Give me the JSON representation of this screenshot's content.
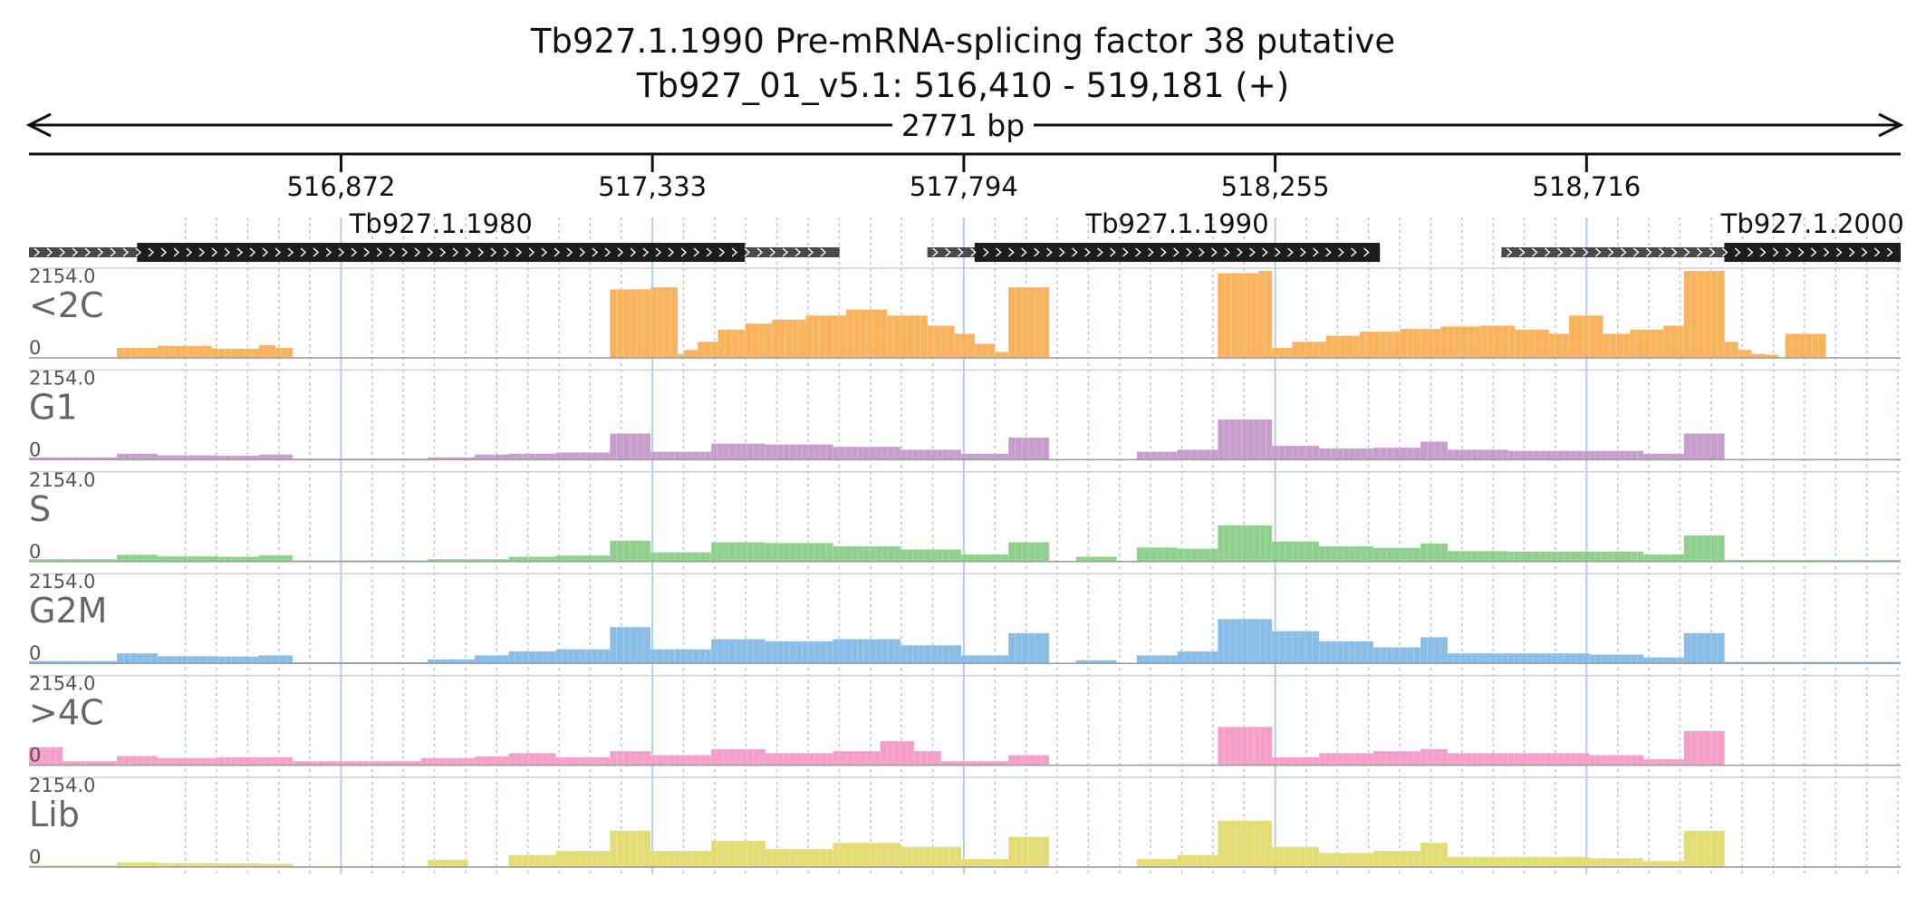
{
  "header": {
    "title_line1": "Tb927.1.1990  Pre-mRNA-splicing factor 38  putative",
    "title_line2": "Tb927_01_v5.1: 516,410 - 519,181 (+)",
    "span_label": "2771 bp"
  },
  "colors": {
    "lt2c": "#f9b35d",
    "g1": "#c79ecb",
    "s": "#8fd08d",
    "g2m": "#88bde8",
    "gt4c": "#f59ec8",
    "lib": "#e3dc72",
    "gene_body": "#1d1d1d",
    "gene_utr": "#4a4a4a",
    "grid": "#8fb9e6"
  },
  "chart_data": {
    "type": "bar",
    "title": "Tb927.1.1990  Pre-mRNA-splicing factor 38  putative",
    "subtitle": "Tb927_01_v5.1: 516,410 - 519,181 (+)",
    "xlabel": "",
    "ylabel": "",
    "xlim": [
      516410,
      519181
    ],
    "ylim": [
      0,
      2154.0
    ],
    "y_max_label": "2154.0",
    "y_min_label": "0",
    "x_ticks": [
      516872,
      517333,
      517794,
      518255,
      518716
    ],
    "x_tick_labels": [
      "516,872",
      "517,333",
      "517,794",
      "518,255",
      "518,716"
    ],
    "grid": true,
    "legend": "none",
    "genes": [
      {
        "name": "Tb927.1.1980",
        "start": 516410,
        "end": 517610,
        "cds_start": 516570,
        "cds_end": 517470
      },
      {
        "name": "Tb927.1.1990",
        "start": 517740,
        "end": 518410,
        "cds_start": 517810,
        "cds_end": 518410
      },
      {
        "name": "Tb927.1.2000",
        "start": 518590,
        "end": 519181,
        "cds_start": 518920,
        "cds_end": 519181
      }
    ],
    "bins": {
      "start": 516410,
      "step": 20,
      "count": 139
    },
    "series": [
      {
        "name": "<2C",
        "color": "#f9b35d",
        "segments": [
          [
            516540,
            516600,
            250
          ],
          [
            516600,
            516680,
            300
          ],
          [
            516680,
            516690,
            240
          ],
          [
            516690,
            516750,
            230
          ],
          [
            516750,
            516775,
            320
          ],
          [
            516775,
            516800,
            250
          ],
          [
            516800,
            516740,
            0
          ],
          [
            517270,
            517330,
            1700
          ],
          [
            517330,
            517370,
            1750
          ],
          [
            517370,
            517380,
            100
          ],
          [
            517380,
            517400,
            200
          ],
          [
            517400,
            517430,
            400
          ],
          [
            517430,
            517470,
            700
          ],
          [
            517470,
            517510,
            850
          ],
          [
            517510,
            517560,
            950
          ],
          [
            517560,
            517620,
            1050
          ],
          [
            517620,
            517680,
            1200
          ],
          [
            517680,
            517740,
            1050
          ],
          [
            517740,
            517780,
            800
          ],
          [
            517780,
            517810,
            600
          ],
          [
            517810,
            517840,
            350
          ],
          [
            517840,
            517860,
            150
          ],
          [
            517860,
            517920,
            1750
          ],
          [
            518170,
            518230,
            2100
          ],
          [
            518230,
            518250,
            2154
          ],
          [
            518250,
            518280,
            250
          ],
          [
            518280,
            518330,
            400
          ],
          [
            518330,
            518380,
            550
          ],
          [
            518380,
            518440,
            650
          ],
          [
            518440,
            518500,
            720
          ],
          [
            518500,
            518560,
            780
          ],
          [
            518560,
            518610,
            800
          ],
          [
            518610,
            518660,
            700
          ],
          [
            518660,
            518690,
            600
          ],
          [
            518690,
            518740,
            1050
          ],
          [
            518740,
            518780,
            600
          ],
          [
            518780,
            518830,
            700
          ],
          [
            518830,
            518860,
            800
          ],
          [
            518860,
            518920,
            2154
          ],
          [
            518920,
            518940,
            400
          ],
          [
            518940,
            518960,
            200
          ],
          [
            518960,
            518980,
            100
          ],
          [
            518980,
            519000,
            80
          ],
          [
            519010,
            519070,
            600
          ]
        ]
      },
      {
        "name": "G1",
        "color": "#c79ecb",
        "segments": [
          [
            516410,
            516540,
            60
          ],
          [
            516540,
            516600,
            150
          ],
          [
            516600,
            516690,
            110
          ],
          [
            516690,
            516750,
            100
          ],
          [
            516750,
            516800,
            130
          ],
          [
            516800,
            517000,
            30
          ],
          [
            517000,
            517070,
            60
          ],
          [
            517070,
            517120,
            130
          ],
          [
            517120,
            517190,
            150
          ],
          [
            517190,
            517270,
            180
          ],
          [
            517270,
            517330,
            650
          ],
          [
            517330,
            517420,
            200
          ],
          [
            517420,
            517500,
            400
          ],
          [
            517500,
            517600,
            380
          ],
          [
            517600,
            517700,
            320
          ],
          [
            517700,
            517790,
            250
          ],
          [
            517790,
            517860,
            150
          ],
          [
            517860,
            517920,
            550
          ],
          [
            518050,
            518110,
            200
          ],
          [
            518110,
            518170,
            250
          ],
          [
            518170,
            518250,
            1000
          ],
          [
            518250,
            518320,
            350
          ],
          [
            518320,
            518400,
            280
          ],
          [
            518400,
            518470,
            300
          ],
          [
            518470,
            518510,
            450
          ],
          [
            518510,
            518600,
            250
          ],
          [
            518600,
            518720,
            220
          ],
          [
            518720,
            518800,
            220
          ],
          [
            518800,
            518860,
            150
          ],
          [
            518860,
            518920,
            650
          ]
        ]
      },
      {
        "name": "S",
        "color": "#8fd08d",
        "segments": [
          [
            516410,
            516540,
            60
          ],
          [
            516540,
            516600,
            170
          ],
          [
            516600,
            516690,
            130
          ],
          [
            516690,
            516750,
            120
          ],
          [
            516750,
            516800,
            160
          ],
          [
            516800,
            517000,
            30
          ],
          [
            517000,
            517120,
            60
          ],
          [
            517120,
            517190,
            120
          ],
          [
            517190,
            517270,
            150
          ],
          [
            517270,
            517330,
            520
          ],
          [
            517330,
            517420,
            230
          ],
          [
            517420,
            517500,
            480
          ],
          [
            517500,
            517600,
            460
          ],
          [
            517600,
            517700,
            380
          ],
          [
            517700,
            517790,
            300
          ],
          [
            517790,
            517860,
            180
          ],
          [
            517860,
            517920,
            480
          ],
          [
            517960,
            518020,
            120
          ],
          [
            518050,
            518110,
            350
          ],
          [
            518110,
            518170,
            320
          ],
          [
            518170,
            518250,
            900
          ],
          [
            518250,
            518320,
            500
          ],
          [
            518320,
            518400,
            380
          ],
          [
            518400,
            518470,
            340
          ],
          [
            518470,
            518510,
            450
          ],
          [
            518510,
            518600,
            260
          ],
          [
            518600,
            518720,
            250
          ],
          [
            518720,
            518800,
            250
          ],
          [
            518800,
            518860,
            180
          ],
          [
            518860,
            518920,
            650
          ],
          [
            518920,
            519181,
            40
          ]
        ]
      },
      {
        "name": "G2M",
        "color": "#88bde8",
        "segments": [
          [
            516410,
            516540,
            60
          ],
          [
            516540,
            516600,
            250
          ],
          [
            516600,
            516690,
            180
          ],
          [
            516690,
            516750,
            170
          ],
          [
            516750,
            516800,
            200
          ],
          [
            516800,
            517000,
            30
          ],
          [
            517000,
            517070,
            100
          ],
          [
            517070,
            517120,
            200
          ],
          [
            517120,
            517190,
            300
          ],
          [
            517190,
            517270,
            350
          ],
          [
            517270,
            517330,
            900
          ],
          [
            517330,
            517420,
            350
          ],
          [
            517420,
            517500,
            600
          ],
          [
            517500,
            517600,
            550
          ],
          [
            517600,
            517700,
            600
          ],
          [
            517700,
            517790,
            450
          ],
          [
            517790,
            517860,
            200
          ],
          [
            517860,
            517920,
            750
          ],
          [
            517960,
            518020,
            80
          ],
          [
            518050,
            518110,
            200
          ],
          [
            518110,
            518170,
            300
          ],
          [
            518170,
            518250,
            1100
          ],
          [
            518250,
            518320,
            800
          ],
          [
            518320,
            518400,
            550
          ],
          [
            518400,
            518470,
            400
          ],
          [
            518470,
            518510,
            650
          ],
          [
            518510,
            518600,
            250
          ],
          [
            518600,
            518720,
            250
          ],
          [
            518720,
            518800,
            220
          ],
          [
            518800,
            518860,
            150
          ],
          [
            518860,
            518920,
            750
          ],
          [
            518920,
            519181,
            40
          ]
        ]
      },
      {
        "name": ">4C",
        "color": "#f59ec8",
        "segments": [
          [
            516410,
            516460,
            450
          ],
          [
            516460,
            516540,
            100
          ],
          [
            516540,
            516600,
            230
          ],
          [
            516600,
            516690,
            180
          ],
          [
            516690,
            516750,
            200
          ],
          [
            516750,
            516800,
            200
          ],
          [
            516800,
            516990,
            100
          ],
          [
            516990,
            517070,
            180
          ],
          [
            517070,
            517120,
            220
          ],
          [
            517120,
            517190,
            300
          ],
          [
            517190,
            517270,
            200
          ],
          [
            517120,
            517160,
            0
          ],
          [
            517270,
            517330,
            350
          ],
          [
            517330,
            517420,
            250
          ],
          [
            517420,
            517500,
            400
          ],
          [
            517500,
            517600,
            300
          ],
          [
            517600,
            517670,
            350
          ],
          [
            517670,
            517720,
            600
          ],
          [
            517720,
            517760,
            350
          ],
          [
            517760,
            517860,
            100
          ],
          [
            517860,
            517920,
            250
          ],
          [
            518050,
            518170,
            20
          ],
          [
            518170,
            518250,
            950
          ],
          [
            518250,
            518320,
            200
          ],
          [
            518320,
            518400,
            300
          ],
          [
            518400,
            518470,
            350
          ],
          [
            518470,
            518510,
            400
          ],
          [
            518510,
            518600,
            300
          ],
          [
            518600,
            518720,
            300
          ],
          [
            518720,
            518800,
            250
          ],
          [
            518800,
            518860,
            150
          ],
          [
            518860,
            518920,
            850
          ]
        ]
      },
      {
        "name": "Lib",
        "color": "#e3dc72",
        "segments": [
          [
            516410,
            516540,
            40
          ],
          [
            516540,
            516600,
            120
          ],
          [
            516600,
            516690,
            100
          ],
          [
            516690,
            516750,
            90
          ],
          [
            516750,
            516800,
            80
          ],
          [
            516800,
            517000,
            20
          ],
          [
            517000,
            517060,
            180
          ],
          [
            517060,
            517120,
            0
          ],
          [
            517120,
            517190,
            300
          ],
          [
            517190,
            517270,
            400
          ],
          [
            517270,
            517330,
            900
          ],
          [
            517330,
            517420,
            400
          ],
          [
            517420,
            517500,
            650
          ],
          [
            517500,
            517600,
            450
          ],
          [
            517600,
            517700,
            600
          ],
          [
            517700,
            517790,
            500
          ],
          [
            517790,
            517860,
            200
          ],
          [
            517860,
            517920,
            750
          ],
          [
            518050,
            518110,
            200
          ],
          [
            518110,
            518170,
            300
          ],
          [
            518170,
            518250,
            1150
          ],
          [
            518250,
            518320,
            500
          ],
          [
            518320,
            518400,
            350
          ],
          [
            518400,
            518470,
            400
          ],
          [
            518470,
            518510,
            600
          ],
          [
            518510,
            518600,
            250
          ],
          [
            518600,
            518720,
            250
          ],
          [
            518720,
            518800,
            220
          ],
          [
            518800,
            518860,
            150
          ],
          [
            518860,
            518920,
            900
          ]
        ]
      }
    ]
  }
}
